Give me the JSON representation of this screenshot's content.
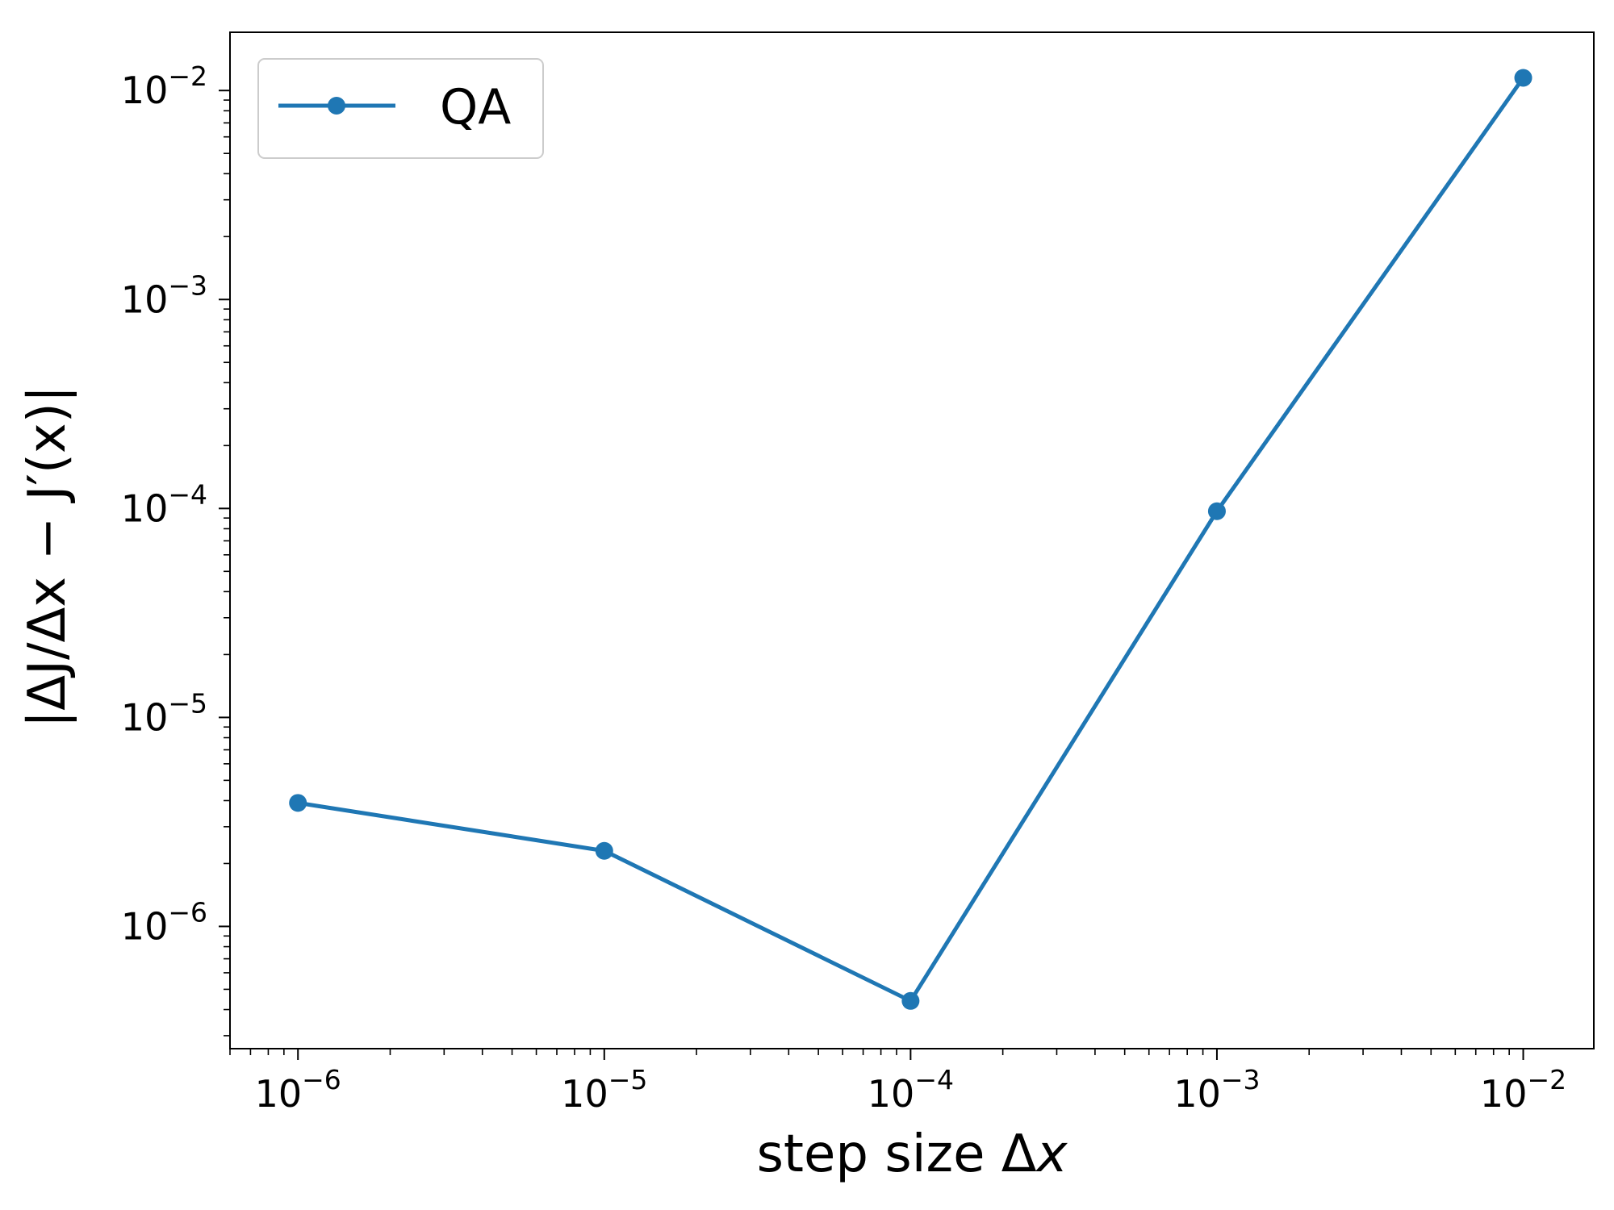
{
  "chart_data": {
    "type": "line",
    "x_scale": "log",
    "y_scale": "log",
    "xlim": [
      6e-07,
      0.017
    ],
    "ylim": [
      2.6e-07,
      0.019
    ],
    "xlabel": {
      "main": "step size Δ",
      "var": "x"
    },
    "ylabel": "|ΔJ/Δx − J′(x)|",
    "legend_placement": "top-left",
    "grid": false,
    "x_ticks": [
      {
        "value": 1e-06,
        "base": "10",
        "exp": "−6"
      },
      {
        "value": 1e-05,
        "base": "10",
        "exp": "−5"
      },
      {
        "value": 0.0001,
        "base": "10",
        "exp": "−4"
      },
      {
        "value": 0.001,
        "base": "10",
        "exp": "−3"
      },
      {
        "value": 0.01,
        "base": "10",
        "exp": "−2"
      }
    ],
    "y_ticks": [
      {
        "value": 1e-06,
        "base": "10",
        "exp": "−6"
      },
      {
        "value": 1e-05,
        "base": "10",
        "exp": "−5"
      },
      {
        "value": 0.0001,
        "base": "10",
        "exp": "−4"
      },
      {
        "value": 0.001,
        "base": "10",
        "exp": "−3"
      },
      {
        "value": 0.01,
        "base": "10",
        "exp": "−2"
      }
    ],
    "series": [
      {
        "name": "QA",
        "color": "#1f77b4",
        "marker": "circle",
        "x": [
          1e-06,
          1e-05,
          0.0001,
          0.001,
          0.01
        ],
        "y": [
          3.9e-06,
          2.3e-06,
          4.4e-07,
          9.7e-05,
          0.0115
        ]
      }
    ]
  }
}
